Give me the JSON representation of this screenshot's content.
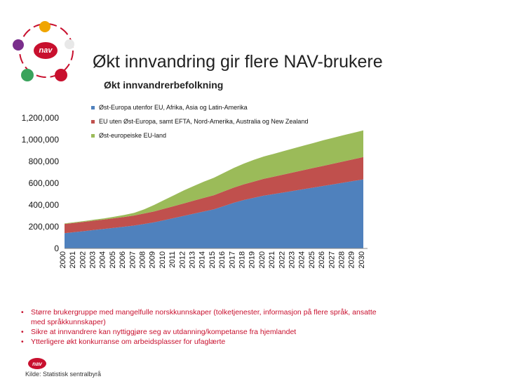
{
  "header": {
    "title": "Økt innvandring gir flere NAV-brukere",
    "logo_text": "nav"
  },
  "chart_data": {
    "type": "area",
    "stacked": true,
    "title": "Økt innvandrerbefolkning",
    "xlabel": "",
    "ylabel": "",
    "x": [
      "2000",
      "2001",
      "2002",
      "2003",
      "2004",
      "2005",
      "2006",
      "2007",
      "2008",
      "2009",
      "2010",
      "2011",
      "2012",
      "2013",
      "2014",
      "2015",
      "2016",
      "2017",
      "2018",
      "2019",
      "2020",
      "2021",
      "2022",
      "2023",
      "2024",
      "2025",
      "2026",
      "2027",
      "2028",
      "2029",
      "2030"
    ],
    "ylim": [
      0,
      1200000
    ],
    "yticks": [
      0,
      200000,
      400000,
      600000,
      800000,
      1000000,
      1200000
    ],
    "ytick_labels": [
      "0",
      "200,000",
      "400,000",
      "600,000",
      "800,000",
      "1,000,000",
      "1,200,000"
    ],
    "legend_position": "top",
    "series": [
      {
        "name": "Øst-Europa utenfor EU, Afrika, Asia og Latin-Amerika",
        "color": "#4f81bd",
        "values": [
          140000,
          150000,
          160000,
          170000,
          180000,
          190000,
          200000,
          210000,
          225000,
          240000,
          260000,
          280000,
          300000,
          320000,
          340000,
          360000,
          390000,
          420000,
          445000,
          465000,
          485000,
          500000,
          515000,
          530000,
          545000,
          560000,
          575000,
          590000,
          605000,
          620000,
          635000
        ]
      },
      {
        "name": "EU uten Øst-Europa, samt EFTA, Nord-Amerika, Australia og New Zealand",
        "color": "#c0504d",
        "values": [
          85000,
          85000,
          85000,
          86000,
          86000,
          88000,
          90000,
          93000,
          97000,
          100000,
          105000,
          110000,
          115000,
          120000,
          125000,
          130000,
          135000,
          140000,
          145000,
          150000,
          155000,
          160000,
          165000,
          170000,
          175000,
          180000,
          185000,
          190000,
          195000,
          200000,
          205000
        ]
      },
      {
        "name": "Øst-europeiske EU-land",
        "color": "#9bbb59",
        "values": [
          5000,
          6000,
          7000,
          9000,
          11000,
          14000,
          18000,
          25000,
          38000,
          60000,
          80000,
          100000,
          120000,
          135000,
          150000,
          160000,
          170000,
          180000,
          190000,
          200000,
          205000,
          210000,
          215000,
          220000,
          225000,
          230000,
          235000,
          238000,
          241000,
          243000,
          245000
        ]
      }
    ]
  },
  "bullets": [
    "Større brukergruppe med mangelfulle norskkunnskaper (tolketjenester, informasjon på flere språk, ansatte med språkkunnskaper)",
    "Sikre at innvandrere kan nyttiggjøre seg av utdanning/kompetanse fra hjemlandet",
    "Ytterligere økt konkurranse om arbeidsplasser for ufaglærte"
  ],
  "footer": {
    "source": "Kilde: Statistisk sentralbyrå"
  },
  "colors": {
    "accent": "#c8102e"
  }
}
